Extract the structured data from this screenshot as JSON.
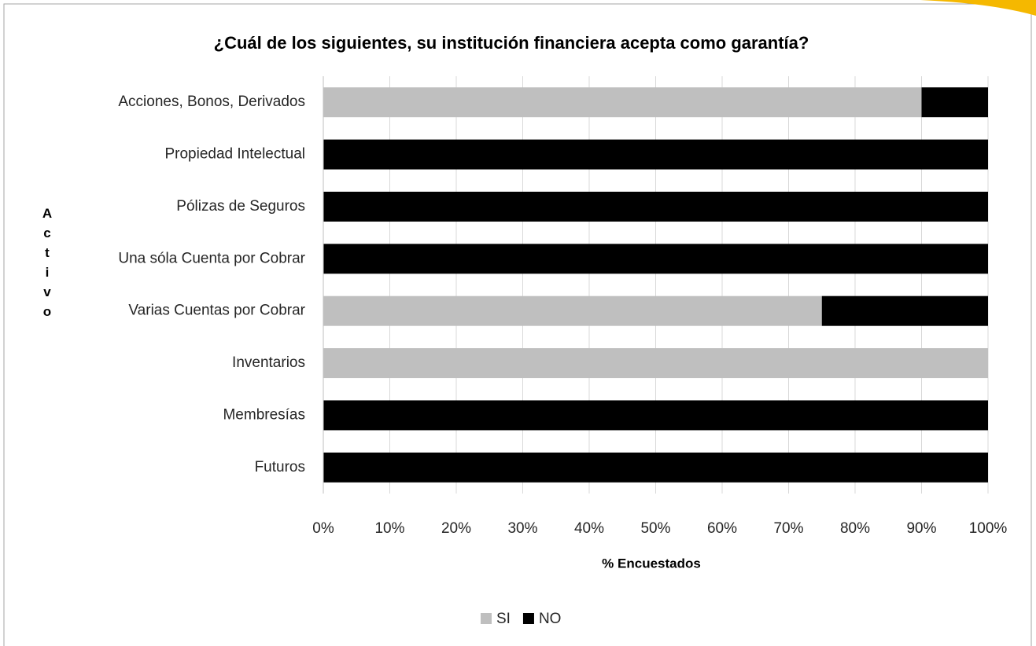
{
  "chart_data": {
    "type": "bar",
    "orientation": "horizontal",
    "stacked": true,
    "title": "¿Cuál de los siguientes, su institución financiera acepta como garantía?",
    "x_label": "% Encuestados",
    "y_label": "Activo",
    "categories": [
      "Acciones, Bonos, Derivados",
      "Propiedad Intelectual",
      "Pólizas de Seguros",
      "Una sóla Cuenta por Cobrar",
      "Varias Cuentas por Cobrar",
      "Inventarios",
      "Membresías",
      "Futuros"
    ],
    "series": [
      {
        "name": "SI",
        "color": "#bfbfbf",
        "values": [
          90,
          0,
          0,
          0,
          75,
          100,
          0,
          0
        ]
      },
      {
        "name": "NO",
        "color": "#000000",
        "values": [
          10,
          100,
          100,
          100,
          25,
          0,
          100,
          100
        ]
      }
    ],
    "xlim": [
      0,
      100
    ],
    "xticks": [
      {
        "value": 0,
        "label": "0%"
      },
      {
        "value": 10,
        "label": "10%"
      },
      {
        "value": 20,
        "label": "20%"
      },
      {
        "value": 30,
        "label": "30%"
      },
      {
        "value": 40,
        "label": "40%"
      },
      {
        "value": 50,
        "label": "50%"
      },
      {
        "value": 60,
        "label": "60%"
      },
      {
        "value": 70,
        "label": "70%"
      },
      {
        "value": 80,
        "label": "80%"
      },
      {
        "value": 90,
        "label": "90%"
      },
      {
        "value": 100,
        "label": "100%"
      }
    ],
    "grid": true,
    "legend": "bottom"
  }
}
